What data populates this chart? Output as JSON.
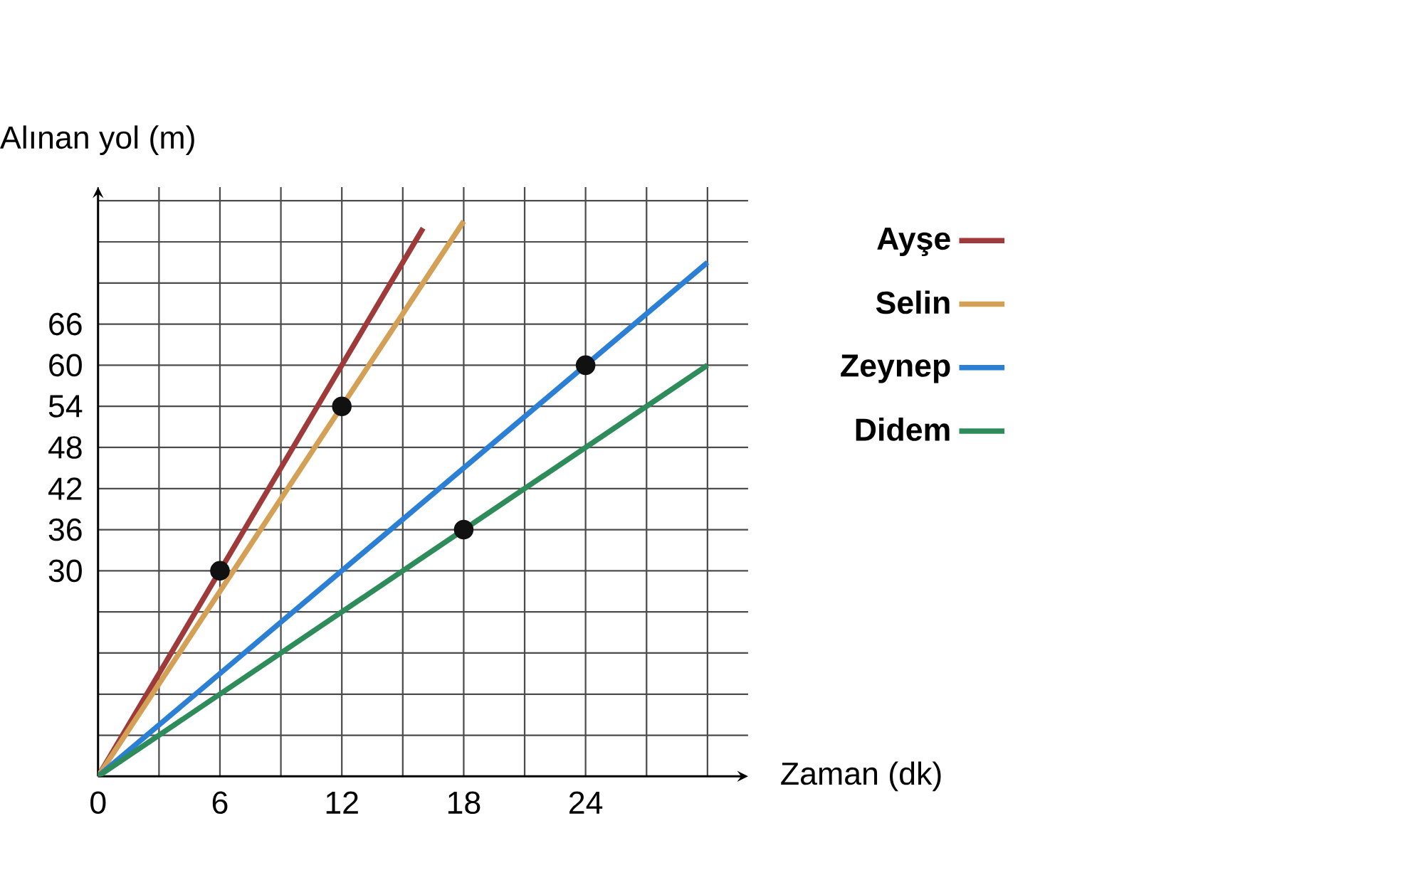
{
  "chart_data": {
    "type": "line",
    "xlabel": "Zaman (dk)",
    "ylabel": "Alınan yol (m)",
    "xlim": [
      0,
      32
    ],
    "ylim": [
      0,
      86
    ],
    "xticks": [
      0,
      {
        "value": 3,
        "label": null
      },
      6,
      {
        "value": 9,
        "label": null
      },
      12,
      {
        "value": 15,
        "label": null
      },
      18,
      {
        "value": 21,
        "label": null
      },
      24,
      {
        "value": 27,
        "label": null
      },
      {
        "value": 30,
        "label": null
      }
    ],
    "yticks": [
      {
        "value": 6,
        "label": null
      },
      {
        "value": 12,
        "label": null
      },
      {
        "value": 18,
        "label": null
      },
      {
        "value": 24,
        "label": null
      },
      30,
      36,
      42,
      48,
      54,
      60,
      66,
      {
        "value": 72,
        "label": null
      },
      {
        "value": 78,
        "label": null
      },
      {
        "value": 84,
        "label": null
      }
    ],
    "grid": true,
    "legend": "right",
    "series": [
      {
        "name": "Ayşe",
        "color": "#9e3a3a",
        "x": [
          0,
          6,
          12,
          16
        ],
        "values": [
          0,
          30,
          60,
          80
        ]
      },
      {
        "name": "Selin",
        "color": "#d4a055",
        "x": [
          0,
          12,
          18
        ],
        "values": [
          0,
          54,
          81
        ]
      },
      {
        "name": "Zeynep",
        "color": "#2b7fd4",
        "x": [
          0,
          24,
          30
        ],
        "values": [
          0,
          60,
          75
        ]
      },
      {
        "name": "Didem",
        "color": "#2e8b5a",
        "x": [
          0,
          18,
          30
        ],
        "values": [
          0,
          36,
          60
        ]
      },
      {
        "type": "scatter",
        "color": "#111111",
        "x": [
          6,
          12,
          18,
          24
        ],
        "values": [
          30,
          54,
          36,
          60
        ]
      }
    ]
  }
}
